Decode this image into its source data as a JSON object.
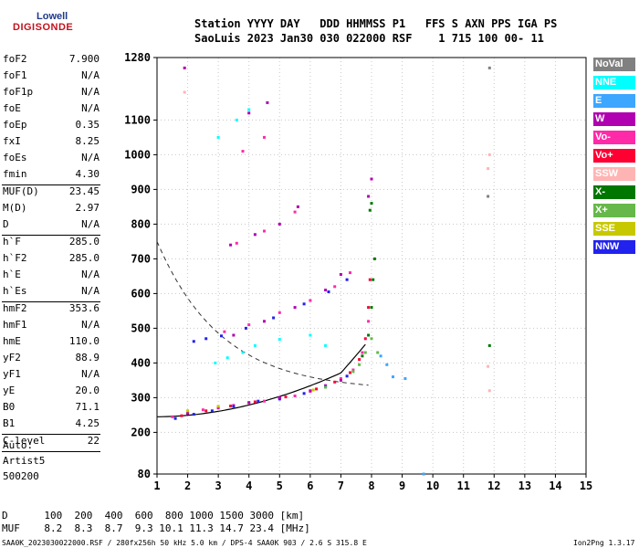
{
  "logo": {
    "top": "Lowell",
    "main": "DIGISONDE"
  },
  "header": {
    "line1": "Station YYYY DAY   DDD HHMMSS P1   FFS S AXN PPS IGA PS",
    "line2": "SaoLuis 2023 Jan30 030 022000 RSF    1 715 100 00- 11"
  },
  "params": [
    {
      "label": "foF2",
      "value": "7.900"
    },
    {
      "label": "foF1",
      "value": "N/A"
    },
    {
      "label": "foF1p",
      "value": "N/A"
    },
    {
      "label": "foE",
      "value": "N/A"
    },
    {
      "label": "foEp",
      "value": "0.35"
    },
    {
      "label": "fxI",
      "value": "8.25"
    },
    {
      "label": "foEs",
      "value": "N/A"
    },
    {
      "label": "fmin",
      "value": "4.30"
    },
    {
      "label": "MUF(D)",
      "value": "23.45"
    },
    {
      "label": "M(D)",
      "value": "2.97"
    },
    {
      "label": "D",
      "value": "N/A"
    },
    {
      "label": "h`F",
      "value": "285.0"
    },
    {
      "label": "h`F2",
      "value": "285.0"
    },
    {
      "label": "h`E",
      "value": "N/A"
    },
    {
      "label": "h`Es",
      "value": "N/A"
    },
    {
      "label": "hmF2",
      "value": "353.6"
    },
    {
      "label": "hmF1",
      "value": "N/A"
    },
    {
      "label": "hmE",
      "value": "110.0"
    },
    {
      "label": "yF2",
      "value": "88.9"
    },
    {
      "label": "yF1",
      "value": "N/A"
    },
    {
      "label": "yE",
      "value": "20.0"
    },
    {
      "label": "B0",
      "value": "71.1"
    },
    {
      "label": "B1",
      "value": "4.25"
    },
    {
      "label": "C-level",
      "value": "22"
    }
  ],
  "auto": {
    "line1": "Auto:",
    "line2": "Artist5",
    "line3": "500200"
  },
  "legend": [
    {
      "label": "NoVal",
      "color": "#808080"
    },
    {
      "label": "NNE",
      "color": "#00ffff"
    },
    {
      "label": "E",
      "color": "#3da6ff"
    },
    {
      "label": "W",
      "color": "#b000b0"
    },
    {
      "label": "Vo-",
      "color": "#ff2aa8"
    },
    {
      "label": "Vo+",
      "color": "#ff0033"
    },
    {
      "label": "SSW",
      "color": "#ffb4b4"
    },
    {
      "label": "X-",
      "color": "#007700"
    },
    {
      "label": "X+",
      "color": "#66b84a"
    },
    {
      "label": "SSE",
      "color": "#c8c800"
    },
    {
      "label": "NNW",
      "color": "#2222ee"
    }
  ],
  "muf_table": {
    "d_label": "D",
    "d_values": "100  200  400  600  800 1000 1500 3000 [km]",
    "muf_label": "MUF",
    "muf_values": "8.2  8.3  8.7  9.3 10.1 11.3 14.7 23.4 [MHz]"
  },
  "footer": {
    "left": "SAA0K_2023030022000.RSF / 280fx256h 50 kHz 5.0 km / DPS-4 SAA0K 903 / 2.6 S 315.8 E",
    "right": "Ion2Png 1.3.17"
  },
  "chart_data": {
    "type": "scatter",
    "xlim": [
      1,
      15
    ],
    "ylim": [
      80,
      1280
    ],
    "x_ticks": [
      1,
      2,
      3,
      4,
      5,
      6,
      7,
      8,
      9,
      10,
      11,
      12,
      13,
      14,
      15
    ],
    "y_ticks": [
      80,
      200,
      300,
      400,
      500,
      600,
      700,
      800,
      900,
      1000,
      1100,
      1280
    ],
    "grid": true,
    "series": [
      {
        "name": "Vo-",
        "points": [
          [
            1.5,
            245
          ],
          [
            2.0,
            255
          ],
          [
            2.5,
            265
          ],
          [
            3.0,
            270
          ],
          [
            3.5,
            278
          ],
          [
            4.0,
            285
          ],
          [
            4.5,
            290
          ],
          [
            5.0,
            298
          ],
          [
            5.5,
            305
          ],
          [
            6.0,
            318
          ],
          [
            6.5,
            335
          ],
          [
            7.0,
            355
          ],
          [
            7.4,
            380
          ],
          [
            7.7,
            430
          ],
          [
            7.9,
            520
          ],
          [
            3.2,
            490
          ],
          [
            4.0,
            510
          ],
          [
            5.0,
            545
          ],
          [
            6.0,
            580
          ],
          [
            6.8,
            620
          ],
          [
            7.3,
            660
          ],
          [
            3.6,
            745
          ],
          [
            4.5,
            780
          ],
          [
            5.5,
            835
          ],
          [
            3.8,
            1010
          ],
          [
            4.5,
            1050
          ]
        ]
      },
      {
        "name": "Vo+",
        "points": [
          [
            1.8,
            248
          ],
          [
            2.6,
            262
          ],
          [
            3.4,
            276
          ],
          [
            4.2,
            288
          ],
          [
            5.2,
            302
          ],
          [
            6.2,
            325
          ],
          [
            6.8,
            345
          ],
          [
            7.3,
            372
          ],
          [
            7.6,
            410
          ],
          [
            7.8,
            470
          ],
          [
            7.9,
            560
          ],
          [
            7.95,
            640
          ]
        ]
      },
      {
        "name": "NNW",
        "points": [
          [
            1.6,
            240
          ],
          [
            2.2,
            252
          ],
          [
            2.8,
            262
          ],
          [
            3.5,
            275
          ],
          [
            4.3,
            290
          ],
          [
            5.0,
            296
          ],
          [
            5.8,
            312
          ],
          [
            6.5,
            333
          ],
          [
            7.2,
            362
          ],
          [
            3.1,
            478
          ],
          [
            3.9,
            500
          ],
          [
            4.8,
            530
          ],
          [
            5.8,
            570
          ],
          [
            6.6,
            605
          ],
          [
            7.2,
            640
          ],
          [
            2.2,
            462
          ],
          [
            2.6,
            470
          ]
        ]
      },
      {
        "name": "W",
        "points": [
          [
            2.0,
            255
          ],
          [
            3.0,
            272
          ],
          [
            4.0,
            286
          ],
          [
            5.0,
            300
          ],
          [
            6.0,
            320
          ],
          [
            7.0,
            350
          ],
          [
            3.5,
            480
          ],
          [
            4.5,
            520
          ],
          [
            5.5,
            560
          ],
          [
            6.5,
            610
          ],
          [
            7.0,
            655
          ],
          [
            3.4,
            740
          ],
          [
            4.2,
            770
          ],
          [
            5.0,
            800
          ],
          [
            5.6,
            850
          ],
          [
            4.0,
            1120
          ],
          [
            4.6,
            1150
          ],
          [
            7.9,
            880
          ],
          [
            8.0,
            930
          ],
          [
            1.9,
            1250
          ]
        ]
      },
      {
        "name": "NNE",
        "points": [
          [
            2.9,
            400
          ],
          [
            3.3,
            415
          ],
          [
            3.8,
            430
          ],
          [
            4.2,
            450
          ],
          [
            5.0,
            468
          ],
          [
            6.0,
            480
          ],
          [
            6.5,
            450
          ],
          [
            3.0,
            1050
          ],
          [
            3.6,
            1100
          ],
          [
            4.0,
            1130
          ]
        ]
      },
      {
        "name": "X-",
        "points": [
          [
            7.7,
            420
          ],
          [
            7.9,
            480
          ],
          [
            8.0,
            560
          ],
          [
            8.05,
            640
          ],
          [
            8.1,
            700
          ],
          [
            7.95,
            840
          ],
          [
            8.0,
            860
          ],
          [
            11.85,
            450
          ]
        ]
      },
      {
        "name": "X+",
        "points": [
          [
            7.4,
            375
          ],
          [
            7.6,
            395
          ],
          [
            7.8,
            430
          ],
          [
            8.0,
            470
          ],
          [
            8.2,
            430
          ],
          [
            6.5,
            330
          ]
        ]
      },
      {
        "name": "E",
        "points": [
          [
            8.3,
            420
          ],
          [
            8.5,
            395
          ],
          [
            8.7,
            360
          ],
          [
            9.1,
            355
          ],
          [
            9.7,
            80
          ]
        ]
      },
      {
        "name": "SSE",
        "points": [
          [
            2.0,
            262
          ],
          [
            3.0,
            275
          ],
          [
            6.1,
            322
          ]
        ]
      },
      {
        "name": "SSW",
        "points": [
          [
            11.8,
            960
          ],
          [
            11.85,
            1000
          ],
          [
            11.8,
            390
          ],
          [
            11.85,
            320
          ],
          [
            1.9,
            1180
          ]
        ]
      },
      {
        "name": "NoVal",
        "points": [
          [
            11.85,
            1250
          ],
          [
            11.8,
            880
          ]
        ]
      }
    ]
  }
}
